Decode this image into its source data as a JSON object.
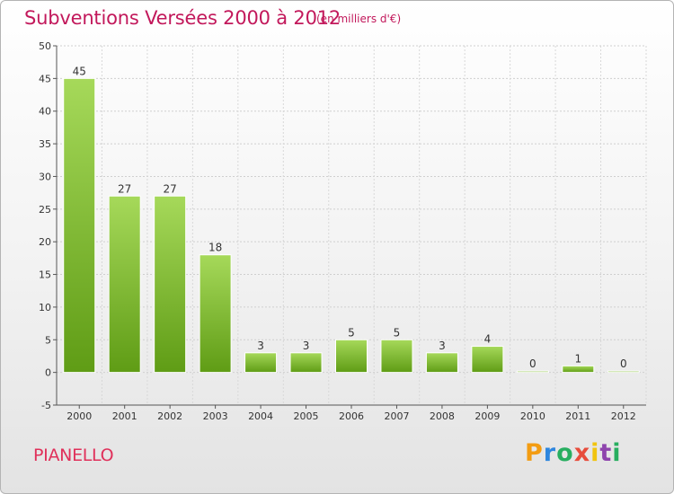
{
  "chart_data": {
    "type": "bar",
    "title": "Subventions Versées 2000 à 2012",
    "subtitle": "(en milliers d'€)",
    "categories": [
      "2000",
      "2001",
      "2002",
      "2003",
      "2004",
      "2005",
      "2006",
      "2007",
      "2008",
      "2009",
      "2010",
      "2011",
      "2012"
    ],
    "values": [
      45,
      27,
      27,
      18,
      3,
      3,
      5,
      5,
      3,
      4,
      0,
      1,
      0
    ],
    "ylim": [
      -5,
      50
    ],
    "yticks": [
      -5,
      0,
      5,
      10,
      15,
      20,
      25,
      30,
      35,
      40,
      45,
      50
    ],
    "grid": true,
    "bar_color": "#7cbd2e",
    "xlabel": "",
    "ylabel": ""
  },
  "commune": "PIANELLO",
  "logo": {
    "letters": [
      "P",
      "r",
      "o",
      "x",
      "i",
      "t",
      "i"
    ],
    "colors": [
      "#f39c12",
      "#2e86de",
      "#27ae60",
      "#e74c3c",
      "#f1c40f",
      "#8e44ad",
      "#27ae60"
    ]
  }
}
